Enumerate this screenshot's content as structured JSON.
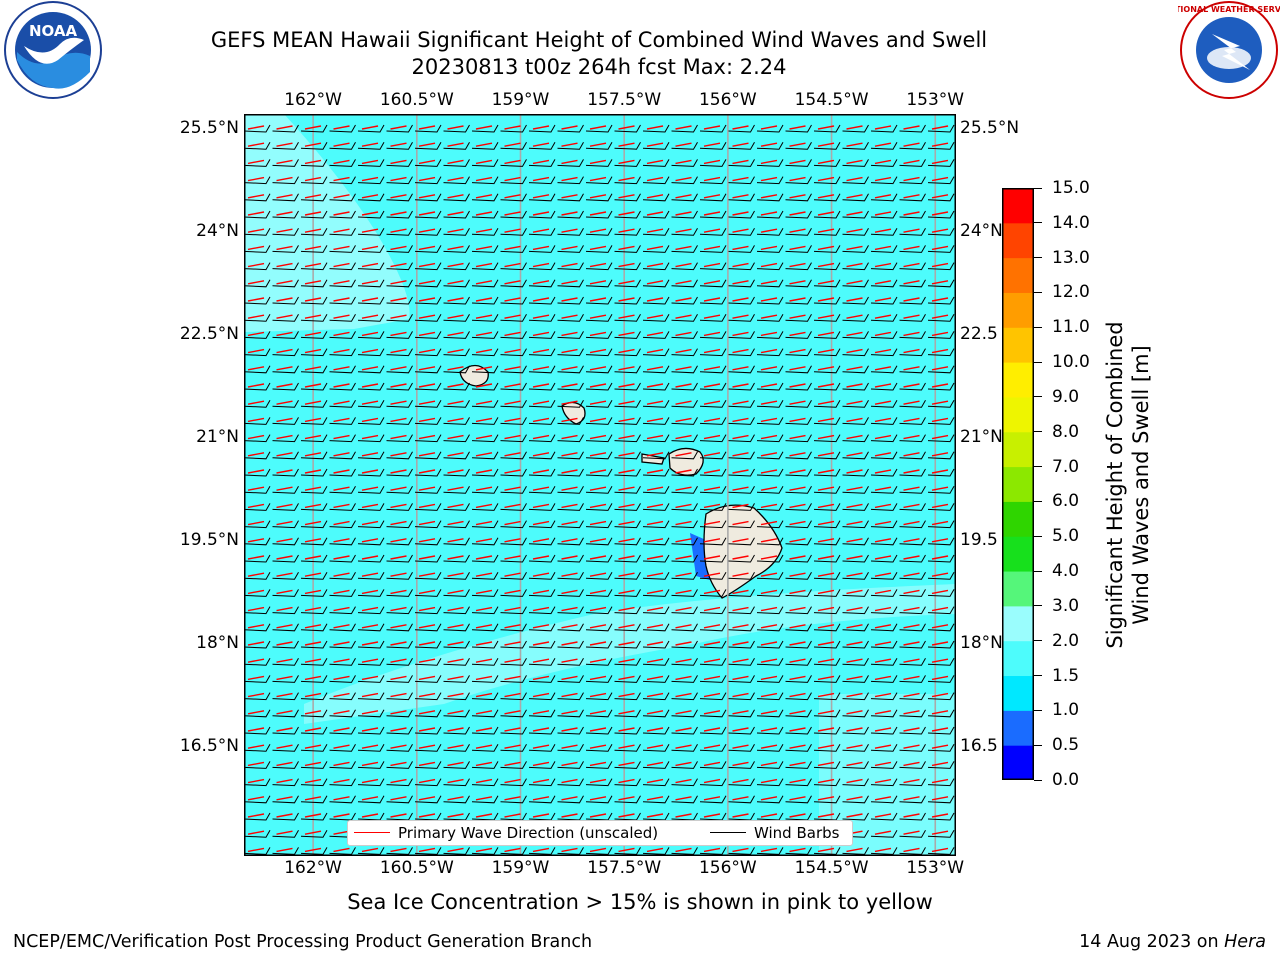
{
  "title": {
    "line1": "GEFS MEAN Hawaii Significant Height of Combined Wind Waves and Swell",
    "line2": "20230813 t00z 264h fcst   Max: 2.24"
  },
  "logos": {
    "left": {
      "text": "NOAA",
      "icon": "noaa-logo"
    },
    "right": {
      "text": "NATIONAL WEATHER SERVICE",
      "icon": "nws-logo"
    }
  },
  "map": {
    "lon_labels": [
      "162°W",
      "160.5°W",
      "159°W",
      "157.5°W",
      "156°W",
      "154.5°W",
      "153°W"
    ],
    "lat_labels": [
      "25.5°N",
      "24°N",
      "22.5°N",
      "21°N",
      "19.5°N",
      "18°N",
      "16.5°N"
    ],
    "lat_labels_right": [
      "25.5°N",
      "24°N",
      "22.5",
      "21°N",
      "19.5",
      "18°N",
      "16.5"
    ],
    "lon_range": [
      -163,
      -152.7
    ],
    "lat_range": [
      14.9,
      25.7
    ],
    "colors": {
      "ocean_mid": "#4dfcfc",
      "ocean_low": "#9afdfd",
      "land": "#efebdf",
      "wave_arrow": "#ff0000",
      "barb": "#000000"
    }
  },
  "legend": {
    "wave_label": "Primary Wave Direction (unscaled)",
    "barb_label": "Wind Barbs"
  },
  "colorbar": {
    "ticks": [
      "0.0",
      "0.5",
      "1.0",
      "1.5",
      "2.0",
      "3.0",
      "4.0",
      "5.0",
      "6.0",
      "7.0",
      "8.0",
      "9.0",
      "10.0",
      "11.0",
      "12.0",
      "13.0",
      "14.0",
      "15.0"
    ],
    "colors": [
      "#0000ff",
      "#1a6cff",
      "#00e8ff",
      "#4dfcfc",
      "#9afdfd",
      "#55f67a",
      "#17e01c",
      "#2fd500",
      "#8ce800",
      "#c8f000",
      "#eef500",
      "#ffee00",
      "#ffc400",
      "#ff9d00",
      "#ff7200",
      "#ff4400",
      "#ff0000"
    ],
    "label_line1": "Significant Height of Combined",
    "label_line2": "Wind Waves and Swell [m]"
  },
  "notes": {
    "sea_ice": "Sea Ice Concentration > 15% is shown in pink to yellow"
  },
  "footer": {
    "left": "NCEP/EMC/Verification Post Processing Product Generation Branch",
    "right_date": "14 Aug 2023 on ",
    "right_machine": "Hera"
  }
}
